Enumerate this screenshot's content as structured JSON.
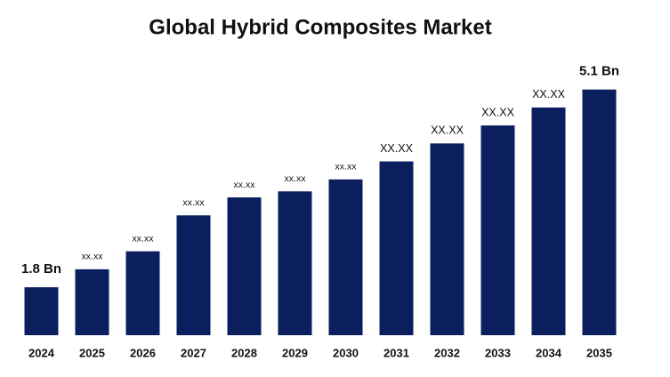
{
  "chart_data": {
    "type": "bar",
    "title": "Global Hybrid Composites Market",
    "categories": [
      "2024",
      "2025",
      "2026",
      "2027",
      "2028",
      "2029",
      "2030",
      "2031",
      "2032",
      "2033",
      "2034",
      "2035"
    ],
    "values": [
      1.8,
      2.1,
      2.4,
      3.0,
      3.3,
      3.4,
      3.6,
      3.9,
      4.2,
      4.5,
      4.8,
      5.1
    ],
    "value_labels": [
      "1.8 Bn",
      "xx.xx",
      "xx.xx",
      "xx.xx",
      "xx.xx",
      "xx.xx",
      "xx.xx",
      "XX.XX",
      "XX.XX",
      "XX.XX",
      "XX.XX",
      "5.1 Bn"
    ],
    "color": "#0b1f5e",
    "ylim": [
      1,
      6
    ]
  }
}
